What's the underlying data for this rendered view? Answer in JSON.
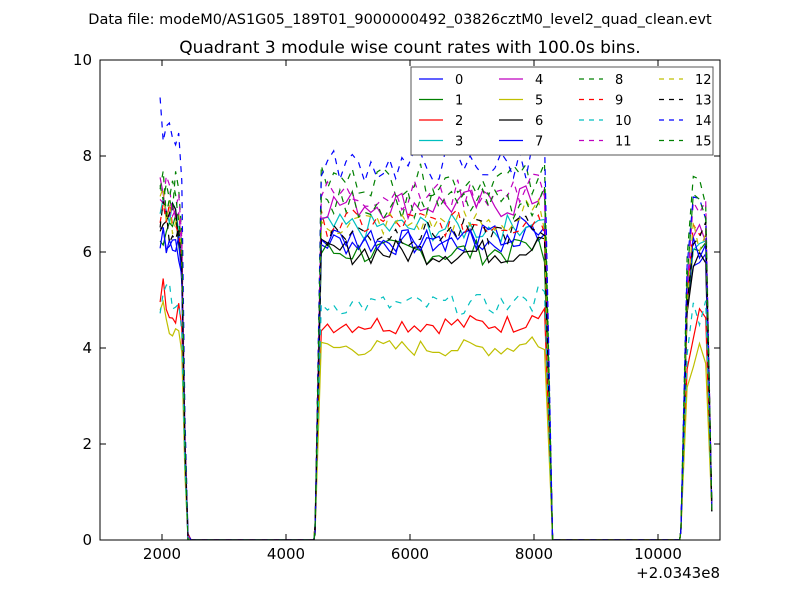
{
  "figure": {
    "suptitle": "Data file: modeM0/AS1G05_189T01_9000000492_03826cztM0_level2_quad_clean.evt"
  },
  "chart_data": {
    "type": "line",
    "title": "Quadrant 3 module wise count rates with 100.0s bins.",
    "xlabel": "",
    "ylabel": "",
    "x_offset_label": "+2.0343e8",
    "xlim": [
      1000,
      11000
    ],
    "ylim": [
      0,
      10
    ],
    "xticks": [
      2000,
      4000,
      6000,
      8000,
      10000
    ],
    "xtick_labels": [
      "2000",
      "4000",
      "6000",
      "8000",
      "10000"
    ],
    "yticks": [
      0,
      2,
      4,
      6,
      8,
      10
    ],
    "ytick_labels": [
      "0",
      "2",
      "4",
      "6",
      "8",
      "10"
    ],
    "grid": false,
    "legend_position": "top-right",
    "legend_columns": 4,
    "gaps_zero_levels": [
      [
        2450,
        4450
      ],
      [
        8300,
        10350
      ]
    ],
    "segments_x": {
      "a": [
        1970,
        2020,
        2070,
        2120,
        2170,
        2220,
        2270,
        2320,
        2370,
        2420,
        2470
      ],
      "b_start": 4470,
      "b_end": 8170,
      "b_step": 100,
      "c": [
        10370,
        10470,
        10570,
        10670,
        10770,
        10870
      ]
    },
    "series": [
      {
        "name": "0",
        "color": "#0000ff",
        "dash": "solid",
        "level": 6.2,
        "a_start": 6.5,
        "c_level": 6.0
      },
      {
        "name": "1",
        "color": "#008000",
        "dash": "solid",
        "level": 6.0,
        "a_start": 6.6,
        "c_level": 5.9
      },
      {
        "name": "2",
        "color": "#ff0000",
        "dash": "solid",
        "level": 4.5,
        "a_start": 5.2,
        "c_level": 4.5
      },
      {
        "name": "3",
        "color": "#00bfbf",
        "dash": "solid",
        "level": 6.5,
        "a_start": 6.8,
        "c_level": 6.3
      },
      {
        "name": "4",
        "color": "#bf00bf",
        "dash": "solid",
        "level": 7.0,
        "a_start": 7.2,
        "c_level": 6.5
      },
      {
        "name": "5",
        "color": "#bfbf00",
        "dash": "solid",
        "level": 4.0,
        "a_start": 4.6,
        "c_level": 4.0
      },
      {
        "name": "6",
        "color": "#000000",
        "dash": "solid",
        "level": 6.0,
        "a_start": 6.8,
        "c_level": 5.8
      },
      {
        "name": "7",
        "color": "#0000ff",
        "dash": "solid",
        "level": 6.3,
        "a_start": 6.3,
        "c_level": 6.2
      },
      {
        "name": "8",
        "color": "#008000",
        "dash": "dashed",
        "level": 7.5,
        "a_start": 7.5,
        "c_level": 7.2
      },
      {
        "name": "9",
        "color": "#ff0000",
        "dash": "dashed",
        "level": 6.6,
        "a_start": 6.9,
        "c_level": 6.5
      },
      {
        "name": "10",
        "color": "#00bfbf",
        "dash": "dashed",
        "level": 4.9,
        "a_start": 5.1,
        "c_level": 4.8
      },
      {
        "name": "11",
        "color": "#bf00bf",
        "dash": "dashed",
        "level": 7.2,
        "a_start": 7.4,
        "c_level": 6.7
      },
      {
        "name": "12",
        "color": "#bfbf00",
        "dash": "dashed",
        "level": 6.6,
        "a_start": 7.0,
        "c_level": 6.4
      },
      {
        "name": "13",
        "color": "#000000",
        "dash": "dashed",
        "level": 6.4,
        "a_start": 6.7,
        "c_level": 6.3
      },
      {
        "name": "14",
        "color": "#0000ff",
        "dash": "dashed",
        "level": 7.8,
        "a_start": 8.8,
        "c_level": 6.9
      },
      {
        "name": "15",
        "color": "#008000",
        "dash": "dashed",
        "level": 7.0,
        "a_start": 7.3,
        "c_level": 6.9
      }
    ]
  }
}
